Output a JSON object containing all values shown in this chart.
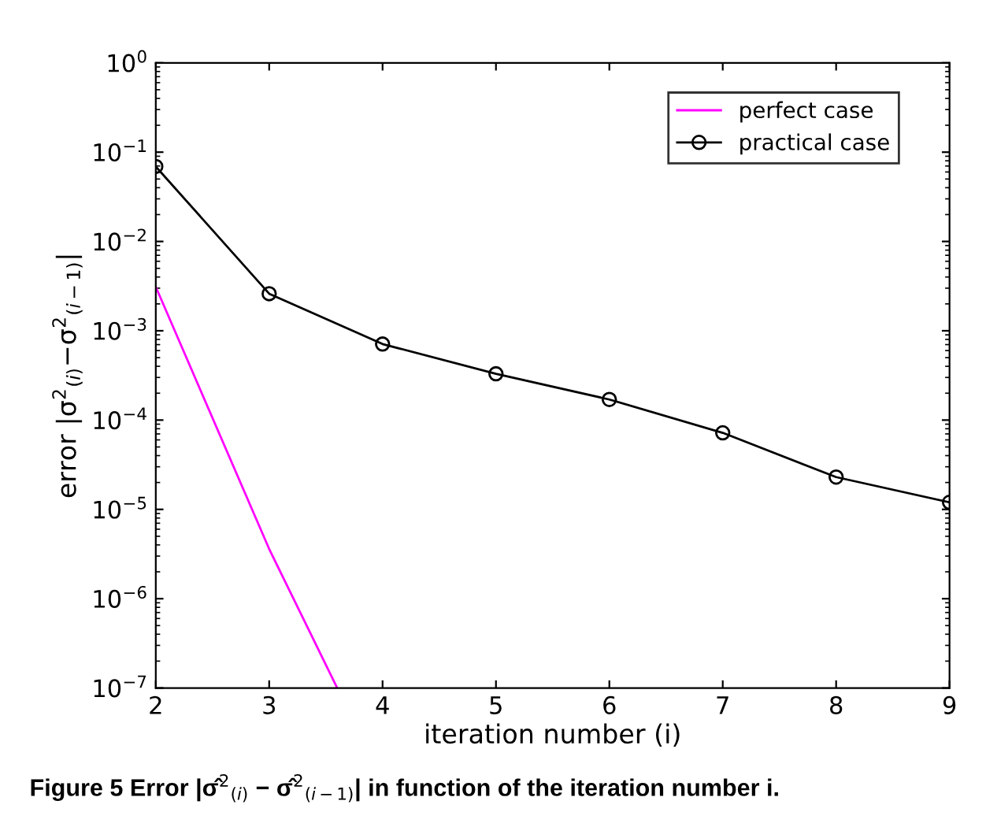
{
  "chart_data": {
    "type": "line",
    "title": "Figure 5 Error |σ̂$^{2}$$_{(i)}$ − σ̂$^{2}$$_{(i−1)}$| in function of the iteration number i.",
    "xlabel": "iteration number (i)",
    "ylabel": "error |σ$^{2}$$_{(i)}$−σ$^{2}$$_{(i−1)}$|",
    "series": [
      {
        "name": "perfect case",
        "color": "#ff00ff",
        "marker": "none",
        "x": [
          2,
          3,
          3.6
        ],
        "values": [
          0.0031,
          3.6e-06,
          1e-07
        ]
      },
      {
        "name": "practical case",
        "color": "#000000",
        "marker": "circle",
        "x": [
          2,
          3,
          4,
          5,
          6,
          7,
          8,
          9
        ],
        "values": [
          0.069,
          0.0026,
          0.00071,
          0.00033,
          0.00017,
          7.2e-05,
          2.3e-05,
          1.2e-05
        ]
      }
    ],
    "log": "y",
    "xlim": [
      2,
      9
    ],
    "xticks": [
      2,
      3,
      4,
      5,
      6,
      7,
      8,
      9
    ],
    "ylim": [
      1e-07,
      1
    ],
    "yticks": [
      {
        "value": 1e-07,
        "label": "10$^{−7}$"
      },
      {
        "value": 1e-06,
        "label": "10$^{−6}$"
      },
      {
        "value": 1e-05,
        "label": "10$^{−5}$"
      },
      {
        "value": 0.0001,
        "label": "10$^{−4}$"
      },
      {
        "value": 0.001,
        "label": "10$^{−3}$"
      },
      {
        "value": 0.01,
        "label": "10$^{−2}$"
      },
      {
        "value": 0.1,
        "label": "10$^{−1}$"
      },
      {
        "value": 1,
        "label": "10$^{0}$"
      }
    ],
    "grid": false,
    "legend": "top right",
    "line_style": "solid"
  }
}
